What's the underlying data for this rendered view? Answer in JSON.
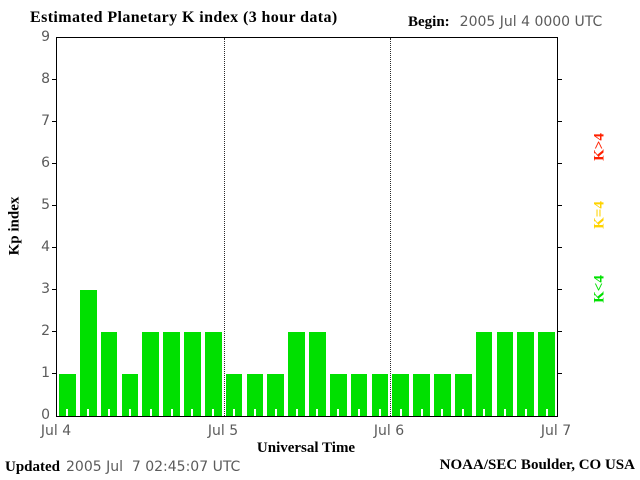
{
  "title": "Estimated Planetary K index (3 hour data)",
  "header": {
    "begin_label": "Begin:",
    "begin_value": "2005 Jul 4 0000 UTC"
  },
  "y_axis": {
    "label": "Kp index",
    "tick_labels": [
      "0",
      "1",
      "2",
      "3",
      "4",
      "5",
      "6",
      "7",
      "8",
      "9"
    ]
  },
  "x_axis": {
    "label": "Universal Time",
    "tick_labels": [
      "Jul 4",
      "Jul 5",
      "Jul 6",
      "Jul 7"
    ]
  },
  "legend": [
    {
      "label": "K>4",
      "color": "#ff2000"
    },
    {
      "label": "K=4",
      "color": "#ffd300"
    },
    {
      "label": "K<4",
      "color": "#00e000"
    }
  ],
  "footer": {
    "updated_label": "Updated",
    "updated_value": "2005 Jul  7 02:45:07 UTC",
    "credit": "NOAA/SEC Boulder, CO USA"
  },
  "colors": {
    "bar": "#00e000",
    "axis_text": "#5b5b5b",
    "axis_line": "#000000"
  },
  "chart_data": {
    "type": "bar",
    "title": "Estimated Planetary K index (3 hour data)",
    "xlabel": "Universal Time",
    "ylabel": "Kp index",
    "ylim": [
      0,
      9
    ],
    "hours_per_bar": 3,
    "start": "2005 Jul 4 0000 UTC",
    "day_tick_labels": [
      "Jul 4",
      "Jul 5",
      "Jul 6",
      "Jul 7"
    ],
    "values": [
      1,
      3,
      2,
      1,
      2,
      2,
      2,
      2,
      1,
      1,
      1,
      2,
      2,
      1,
      1,
      1,
      1,
      1,
      1,
      1,
      2,
      2,
      2,
      2
    ],
    "bar_color": "#00e000",
    "grid": "dotted vertical lines at day boundaries",
    "legend_position": "right, rotated"
  }
}
